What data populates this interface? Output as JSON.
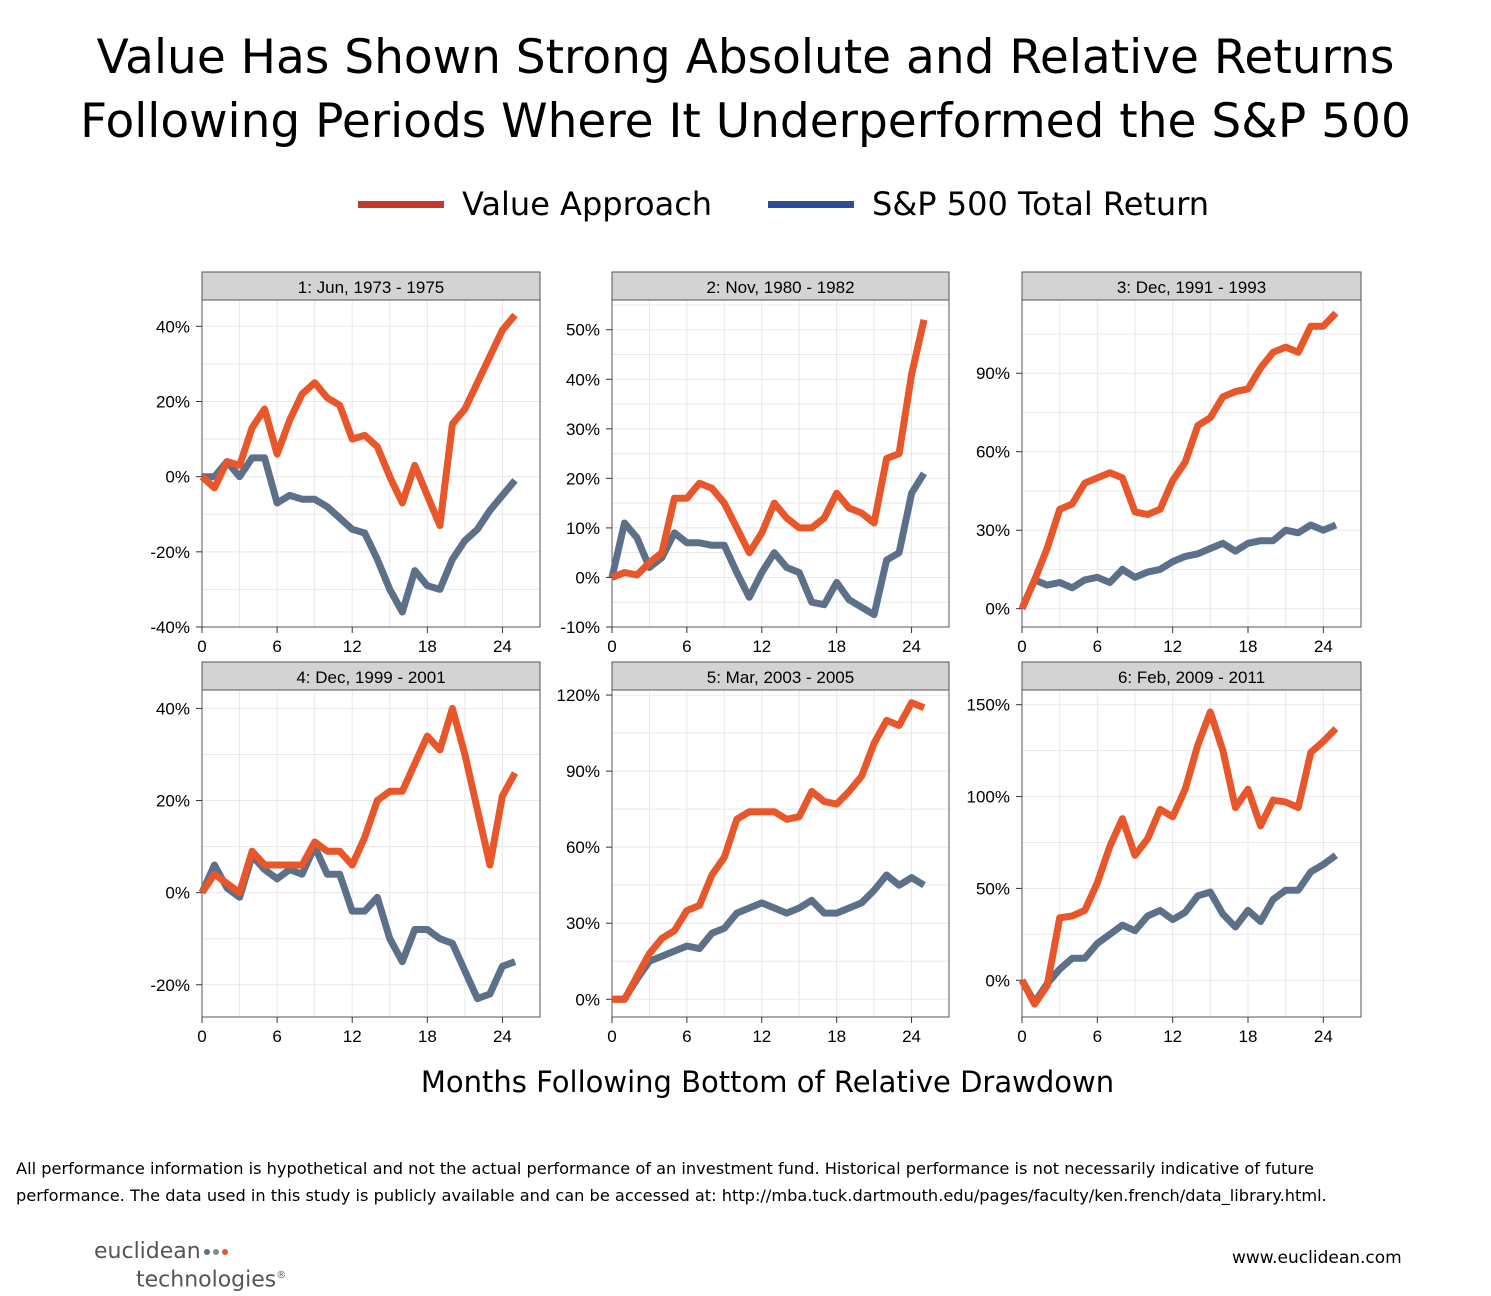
{
  "title": {
    "line1": "Value Has Shown Strong Absolute and Relative Returns",
    "line2": "Following Periods Where It Underperformed the S&P 500"
  },
  "legend": [
    {
      "label": "Value Approach",
      "color": "#c0392b"
    },
    {
      "label": "S&P 500 Total Return",
      "color": "#2e4a9a"
    }
  ],
  "colors": {
    "value_line": "#e8562a",
    "sp500_line": "#5c7089",
    "strip_fill": "#d3d3d3",
    "grid": "#e8e8e8"
  },
  "x_axis_label": "Months Following Bottom of Relative Drawdown",
  "chart_data": [
    {
      "type": "line",
      "title": "1: Jun, 1973 - 1975",
      "x": [
        0,
        1,
        2,
        3,
        4,
        5,
        6,
        7,
        8,
        9,
        10,
        11,
        12,
        13,
        14,
        15,
        16,
        17,
        18,
        19,
        20,
        21,
        22,
        23,
        24,
        25
      ],
      "xticks": [
        0,
        6,
        12,
        18,
        24
      ],
      "xlim": [
        0,
        27
      ],
      "ylim": [
        -40,
        47
      ],
      "yticks": [
        -40,
        -20,
        0,
        20,
        40
      ],
      "ytick_labels": [
        "-40%",
        "-20%",
        "0%",
        "20%",
        "40%"
      ],
      "series": [
        {
          "name": "Value Approach",
          "values": [
            0,
            -3,
            4,
            3,
            13,
            18,
            6,
            15,
            22,
            25,
            21,
            19,
            10,
            11,
            8,
            0,
            -7,
            3,
            -5,
            -13,
            14,
            18,
            25,
            32,
            39,
            43
          ]
        },
        {
          "name": "S&P 500 Total Return",
          "values": [
            0,
            0,
            4,
            0,
            5,
            5,
            -7,
            -5,
            -6,
            -6,
            -8,
            -11,
            -14,
            -15,
            -22,
            -30,
            -36,
            -25,
            -29,
            -30,
            -22,
            -17,
            -14,
            -9,
            -5,
            -1
          ]
        }
      ]
    },
    {
      "type": "line",
      "title": "2: Nov, 1980 - 1982",
      "x": [
        0,
        1,
        2,
        3,
        4,
        5,
        6,
        7,
        8,
        9,
        10,
        11,
        12,
        13,
        14,
        15,
        16,
        17,
        18,
        19,
        20,
        21,
        22,
        23,
        24,
        25
      ],
      "xticks": [
        0,
        6,
        12,
        18,
        24
      ],
      "xlim": [
        0,
        27
      ],
      "ylim": [
        -10,
        56
      ],
      "yticks": [
        -10,
        0,
        10,
        20,
        30,
        40,
        50
      ],
      "ytick_labels": [
        "-10%",
        "0%",
        "10%",
        "20%",
        "30%",
        "40%",
        "50%"
      ],
      "series": [
        {
          "name": "Value Approach",
          "values": [
            0,
            1,
            0.5,
            3,
            5,
            16,
            16,
            19,
            18,
            15,
            10,
            5,
            9,
            15,
            12,
            10,
            10,
            12,
            17,
            14,
            13,
            11,
            24,
            25,
            41,
            52
          ]
        },
        {
          "name": "S&P 500 Total Return",
          "values": [
            0,
            11,
            8,
            2,
            4,
            9,
            7,
            7,
            6.5,
            6.5,
            1,
            -4,
            1,
            5,
            2,
            1,
            -5,
            -5.5,
            -1,
            -4.5,
            -6,
            -7.5,
            3.5,
            5,
            17,
            21
          ]
        }
      ]
    },
    {
      "type": "line",
      "title": "3: Dec, 1991 - 1993",
      "x": [
        0,
        1,
        2,
        3,
        4,
        5,
        6,
        7,
        8,
        9,
        10,
        11,
        12,
        13,
        14,
        15,
        16,
        17,
        18,
        19,
        20,
        21,
        22,
        23,
        24,
        25
      ],
      "xticks": [
        0,
        6,
        12,
        18,
        24
      ],
      "xlim": [
        0,
        27
      ],
      "ylim": [
        -7,
        118
      ],
      "yticks": [
        0,
        30,
        60,
        90
      ],
      "ytick_labels": [
        "0%",
        "30%",
        "60%",
        "90%"
      ],
      "series": [
        {
          "name": "Value Approach",
          "values": [
            0,
            11,
            23,
            38,
            40,
            48,
            50,
            52,
            50,
            37,
            36,
            38,
            49,
            56,
            70,
            73,
            81,
            83,
            84,
            92,
            98,
            100,
            98,
            108,
            108,
            113
          ]
        },
        {
          "name": "S&P 500 Total Return",
          "values": [
            0,
            11,
            9,
            10,
            8,
            11,
            12,
            10,
            15,
            12,
            14,
            15,
            18,
            20,
            21,
            23,
            25,
            22,
            25,
            26,
            26,
            30,
            29,
            32,
            30,
            32
          ]
        }
      ]
    },
    {
      "type": "line",
      "title": "4: Dec, 1999 - 2001",
      "x": [
        0,
        1,
        2,
        3,
        4,
        5,
        6,
        7,
        8,
        9,
        10,
        11,
        12,
        13,
        14,
        15,
        16,
        17,
        18,
        19,
        20,
        21,
        22,
        23,
        24,
        25
      ],
      "xticks": [
        0,
        6,
        12,
        18,
        24
      ],
      "xlim": [
        0,
        27
      ],
      "ylim": [
        -27,
        44
      ],
      "yticks": [
        -20,
        0,
        20,
        40
      ],
      "ytick_labels": [
        "-20%",
        "0%",
        "20%",
        "40%"
      ],
      "series": [
        {
          "name": "Value Approach",
          "values": [
            0,
            4,
            2,
            0,
            9,
            6,
            6,
            6,
            6,
            11,
            9,
            9,
            6,
            12,
            20,
            22,
            22,
            28,
            34,
            31,
            40,
            30,
            18,
            6,
            21,
            26
          ]
        },
        {
          "name": "S&P 500 Total Return",
          "values": [
            0,
            6,
            1,
            -1,
            8,
            5,
            3,
            5,
            4,
            10,
            4,
            4,
            -4,
            -4,
            -1,
            -10,
            -15,
            -8,
            -8,
            -10,
            -11,
            -17,
            -23,
            -22,
            -16,
            -15
          ]
        }
      ]
    },
    {
      "type": "line",
      "title": "5: Mar, 2003 - 2005",
      "x": [
        0,
        1,
        2,
        3,
        4,
        5,
        6,
        7,
        8,
        9,
        10,
        11,
        12,
        13,
        14,
        15,
        16,
        17,
        18,
        19,
        20,
        21,
        22,
        23,
        24,
        25
      ],
      "xticks": [
        0,
        6,
        12,
        18,
        24
      ],
      "xlim": [
        0,
        27
      ],
      "ylim": [
        -7,
        122
      ],
      "yticks": [
        0,
        30,
        60,
        90,
        120
      ],
      "ytick_labels": [
        "0%",
        "30%",
        "60%",
        "90%",
        "120%"
      ],
      "series": [
        {
          "name": "Value Approach",
          "values": [
            0,
            0,
            9,
            18,
            24,
            27,
            35,
            37,
            49,
            56,
            71,
            74,
            74,
            74,
            71,
            72,
            82,
            78,
            77,
            82,
            88,
            101,
            110,
            108,
            117,
            115
          ]
        },
        {
          "name": "S&P 500 Total Return",
          "values": [
            0,
            0,
            8,
            15,
            17,
            19,
            21,
            20,
            26,
            28,
            34,
            36,
            38,
            36,
            34,
            36,
            39,
            34,
            34,
            36,
            38,
            43,
            49,
            45,
            48,
            45
          ]
        }
      ]
    },
    {
      "type": "line",
      "title": "6: Feb, 2009 - 2011",
      "x": [
        0,
        1,
        2,
        3,
        4,
        5,
        6,
        7,
        8,
        9,
        10,
        11,
        12,
        13,
        14,
        15,
        16,
        17,
        18,
        19,
        20,
        21,
        22,
        23,
        24,
        25
      ],
      "xticks": [
        0,
        6,
        12,
        18,
        24
      ],
      "xlim": [
        0,
        27
      ],
      "ylim": [
        -20,
        158
      ],
      "yticks": [
        0,
        50,
        100,
        150
      ],
      "ytick_labels": [
        "0%",
        "50%",
        "100%",
        "150%"
      ],
      "series": [
        {
          "name": "Value Approach",
          "values": [
            0,
            -13,
            -3,
            34,
            35,
            38,
            53,
            73,
            88,
            68,
            77,
            93,
            89,
            104,
            128,
            146,
            125,
            94,
            104,
            84,
            98,
            97,
            94,
            124,
            130,
            137
          ]
        },
        {
          "name": "S&P 500 Total Return",
          "values": [
            0,
            -12,
            -2,
            6,
            12,
            12,
            20,
            25,
            30,
            27,
            35,
            38,
            33,
            37,
            46,
            48,
            36,
            29,
            38,
            32,
            44,
            49,
            49,
            59,
            63,
            68
          ]
        }
      ]
    }
  ],
  "disclaimer": {
    "line1": "All performance information is hypothetical and not the actual performance of an investment fund. Historical performance is not necessarily indicative of future",
    "line2": "performance. The data used in this study is publicly available and can be accessed at: http://mba.tuck.dartmouth.edu/pages/faculty/ken.french/data_library.html."
  },
  "logo": {
    "line1": "euclidean",
    "line2": "technologies",
    "mark": "®",
    "dot_colors": [
      "#5c7089",
      "#7f8c8d",
      "#e8562a"
    ]
  },
  "website": "www.euclidean.com"
}
